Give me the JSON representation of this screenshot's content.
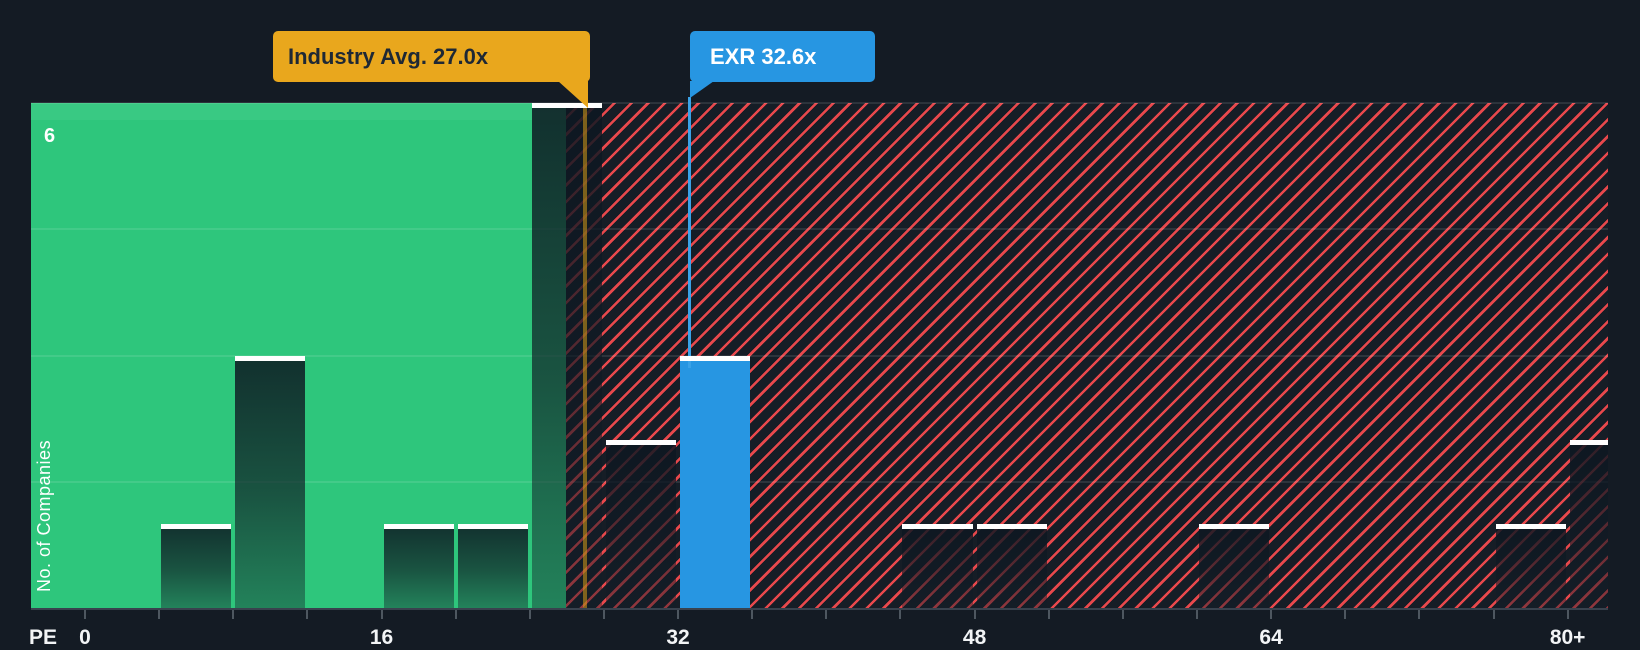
{
  "chart_data": {
    "type": "bar",
    "subtype": "histogram",
    "title": "Price-to-Earnings distribution of companies vs industry average",
    "xlabel": "PE",
    "ylabel": "No. of Companies",
    "y_max": 6,
    "y_top_tick_label": "6",
    "bucket_width_pe": 4,
    "x_tick_labels": [
      {
        "text": "0",
        "pe": 0
      },
      {
        "text": "16",
        "pe": 16
      },
      {
        "text": "32",
        "pe": 32
      },
      {
        "text": "48",
        "pe": 48
      },
      {
        "text": "64",
        "pe": 64
      },
      {
        "text": "80+",
        "pe": 80
      }
    ],
    "bars": [
      {
        "pe_from": 4,
        "pe_to": 8,
        "count": 1
      },
      {
        "pe_from": 8,
        "pe_to": 12,
        "count": 3
      },
      {
        "pe_from": 16,
        "pe_to": 20,
        "count": 1
      },
      {
        "pe_from": 20,
        "pe_to": 24,
        "count": 1
      },
      {
        "pe_from": 24,
        "pe_to": 28,
        "count": 6
      },
      {
        "pe_from": 28,
        "pe_to": 32,
        "count": 2
      },
      {
        "pe_from": 32,
        "pe_to": 36,
        "count": 3,
        "highlight": "company"
      },
      {
        "pe_from": 44,
        "pe_to": 48,
        "count": 1
      },
      {
        "pe_from": 48,
        "pe_to": 52,
        "count": 1
      },
      {
        "pe_from": 60,
        "pe_to": 64,
        "count": 1
      },
      {
        "pe_from": 76,
        "pe_to": 80,
        "count": 1
      },
      {
        "pe_from": 80,
        "pe_to": 84,
        "count": 2,
        "overflow": true
      }
    ],
    "markers": [
      {
        "id": "industry",
        "label": "Industry Avg. 27.0x",
        "pe": 27.0,
        "color": "#E9A71D"
      },
      {
        "id": "company",
        "label": "EXR 32.6x",
        "pe": 32.6,
        "color": "#2796E2"
      }
    ],
    "regions": [
      {
        "name": "below-industry-average",
        "fill": "solid-green",
        "pe_from": 0,
        "pe_to": 26,
        "color": "#2EC67C"
      },
      {
        "name": "above-industry-average",
        "fill": "red-diagonal-hatch",
        "pe_from": 26,
        "pe_to": 84,
        "color": "#E8484C"
      }
    ],
    "grid": {
      "horizontal_gridlines": 4,
      "gridlines_visible": true
    },
    "colors": {
      "background": "#141B24",
      "green_region": "#2EC67C",
      "hatch_red": "#E8484C",
      "company_blue": "#2796E2",
      "industry_yellow": "#E9A71D",
      "bar_cap_white": "#FFFFFF"
    }
  }
}
